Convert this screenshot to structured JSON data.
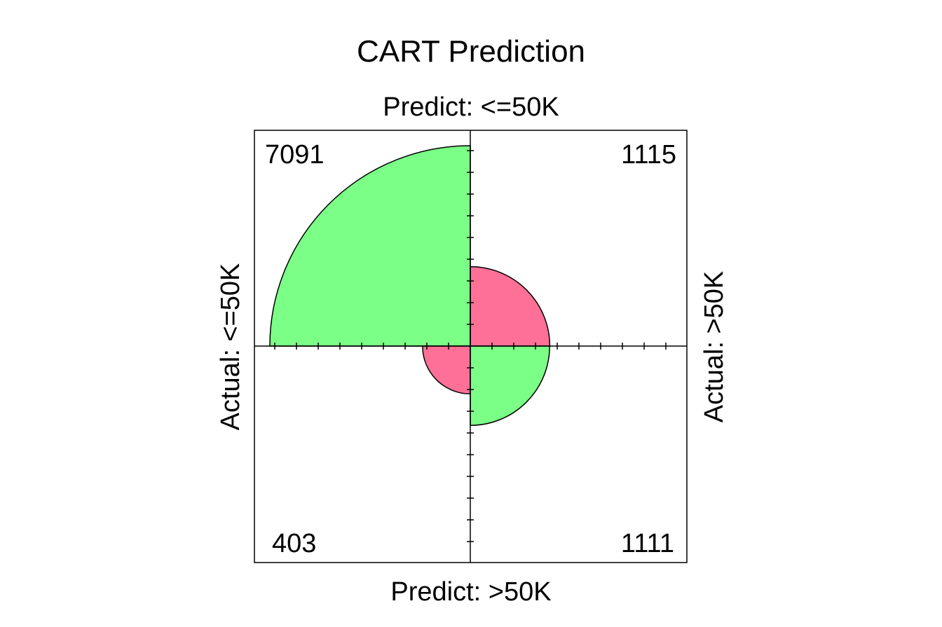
{
  "chart_data": {
    "type": "fourfold",
    "title": "CART Prediction",
    "col_labels": [
      "Predict: <=50K",
      "Predict: >50K"
    ],
    "row_labels": [
      "Actual: <=50K",
      "Actual: >50K"
    ],
    "cells": [
      {
        "actual": "<=50K",
        "predict": "<=50K",
        "count": 7091,
        "correct": true
      },
      {
        "actual": ">50K",
        "predict": "<=50K",
        "count": 1115,
        "correct": false
      },
      {
        "actual": "<=50K",
        "predict": ">50K",
        "count": 403,
        "correct": false
      },
      {
        "actual": ">50K",
        "predict": ">50K",
        "count": 1111,
        "correct": true
      }
    ],
    "colors": {
      "correct": "#7bff87",
      "incorrect": "#ff7096"
    }
  }
}
